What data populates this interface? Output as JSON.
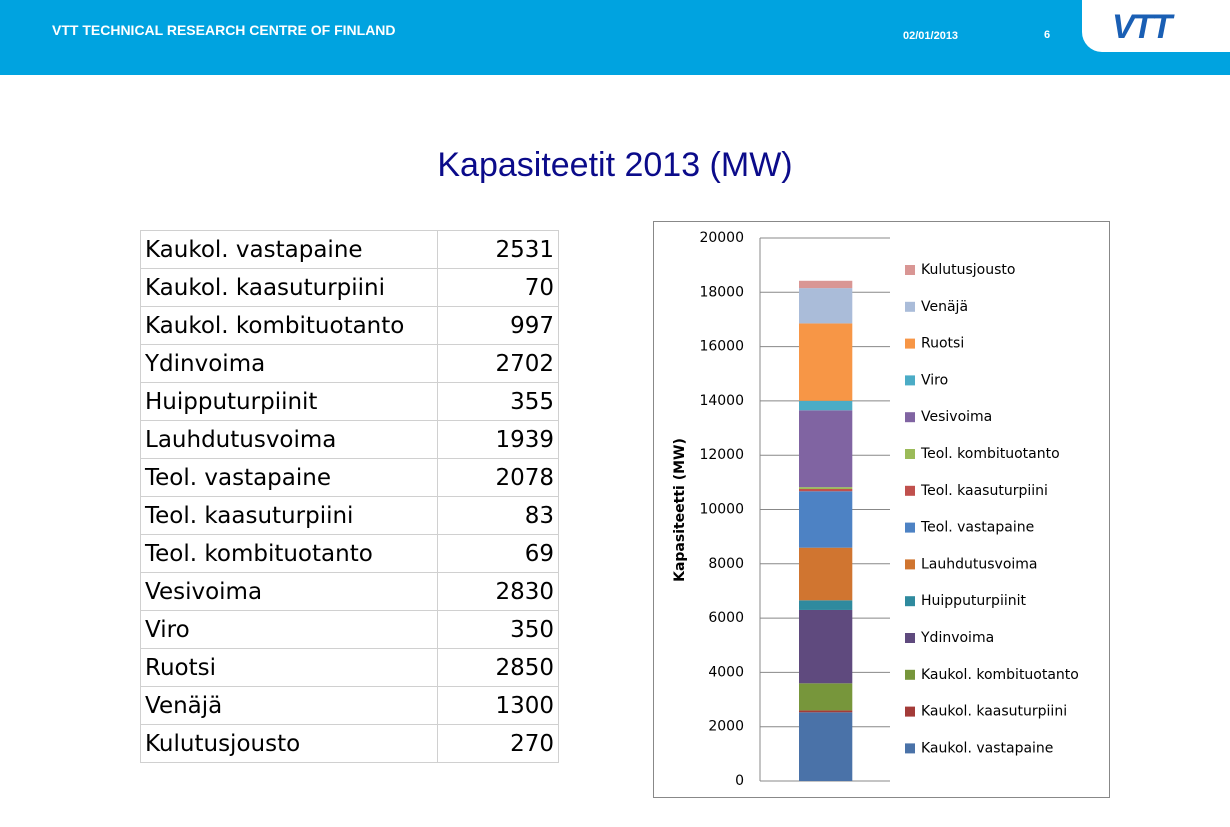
{
  "header": {
    "organization": "VTT TECHNICAL RESEARCH CENTRE OF FINLAND",
    "date": "02/01/2013",
    "page": "6",
    "logo": "VTT"
  },
  "title": "Kapasiteetit 2013 (MW)",
  "table": {
    "rows": [
      [
        "Kaukol. vastapaine",
        2531
      ],
      [
        "Kaukol. kaasuturpiini",
        70
      ],
      [
        "Kaukol. kombituotanto",
        997
      ],
      [
        "Ydinvoima",
        2702
      ],
      [
        "Huipputurpiinit",
        355
      ],
      [
        "Lauhdutusvoima",
        1939
      ],
      [
        "Teol. vastapaine",
        2078
      ],
      [
        "Teol. kaasuturpiini",
        83
      ],
      [
        "Teol. kombituotanto",
        69
      ],
      [
        "Vesivoima",
        2830
      ],
      [
        "Viro",
        350
      ],
      [
        "Ruotsi",
        2850
      ],
      [
        "Venäjä",
        1300
      ],
      [
        "Kulutusjousto",
        270
      ]
    ]
  },
  "chart_data": {
    "type": "bar",
    "stacked": true,
    "ylabel": "Kapasiteetti (MW)",
    "categories": [
      null
    ],
    "ylim": [
      0,
      20000
    ],
    "yticks": [
      0,
      2000,
      4000,
      6000,
      8000,
      10000,
      12000,
      14000,
      16000,
      18000,
      20000
    ],
    "grid": true,
    "legend": "right",
    "series": [
      {
        "name": "Kaukol. vastapaine",
        "color": "#4a72a8",
        "values": [
          2531
        ]
      },
      {
        "name": "Kaukol. kaasuturpiini",
        "color": "#a33b38",
        "values": [
          70
        ]
      },
      {
        "name": "Kaukol. kombituotanto",
        "color": "#77963b",
        "values": [
          997
        ]
      },
      {
        "name": "Ydinvoima",
        "color": "#5f4a7e",
        "values": [
          2702
        ]
      },
      {
        "name": "Huipputurpiinit",
        "color": "#2f8a9e",
        "values": [
          355
        ]
      },
      {
        "name": "Lauhdutusvoima",
        "color": "#d07530",
        "values": [
          1939
        ]
      },
      {
        "name": "Teol. vastapaine",
        "color": "#4d82c4",
        "values": [
          2078
        ]
      },
      {
        "name": "Teol. kaasuturpiini",
        "color": "#c0504d",
        "values": [
          83
        ]
      },
      {
        "name": "Teol. kombituotanto",
        "color": "#9bbb59",
        "values": [
          69
        ]
      },
      {
        "name": "Vesivoima",
        "color": "#8064a2",
        "values": [
          2830
        ]
      },
      {
        "name": "Viro",
        "color": "#4bacc6",
        "values": [
          350
        ]
      },
      {
        "name": "Ruotsi",
        "color": "#f79646",
        "values": [
          2850
        ]
      },
      {
        "name": "Venäjä",
        "color": "#aabcd9",
        "values": [
          1300
        ]
      },
      {
        "name": "Kulutusjousto",
        "color": "#d99694",
        "values": [
          270
        ]
      }
    ]
  }
}
